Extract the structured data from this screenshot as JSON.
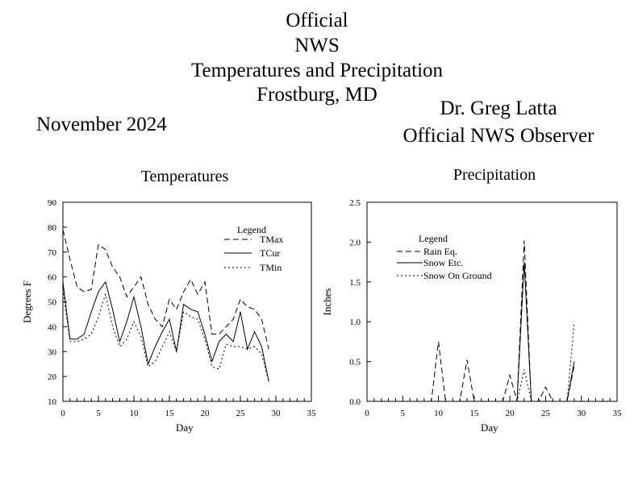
{
  "header": {
    "title_lines": [
      "Official",
      "NWS",
      "Temperatures and Precipitation",
      "Frostburg, MD"
    ],
    "month": "November 2024",
    "observer_name": "Dr. Greg Latta",
    "observer_role": "Official NWS Observer"
  },
  "chart_data": [
    {
      "type": "line",
      "title": "Temperatures",
      "xlabel": "Day",
      "ylabel": "Degrees F",
      "xlim": [
        0,
        35
      ],
      "ylim": [
        10,
        90
      ],
      "xticks": [
        0,
        5,
        10,
        15,
        20,
        25,
        30,
        35
      ],
      "yticks": [
        10,
        20,
        30,
        40,
        50,
        60,
        70,
        80,
        90
      ],
      "grid": false,
      "legend_title": "Legend",
      "legend_position": "top-right",
      "x": [
        0,
        1,
        2,
        3,
        4,
        5,
        6,
        7,
        8,
        9,
        10,
        11,
        12,
        13,
        14,
        15,
        16,
        17,
        18,
        19,
        20,
        21,
        22,
        23,
        24,
        25,
        26,
        27,
        28,
        29
      ],
      "series": [
        {
          "name": "TMax",
          "style": "dashed",
          "values": [
            79,
            67,
            56,
            54,
            55,
            73,
            71,
            64,
            60,
            52,
            56,
            60,
            49,
            43,
            40,
            51,
            47,
            54,
            59,
            53,
            58,
            37,
            37,
            40,
            43,
            51,
            48,
            47,
            43,
            31
          ]
        },
        {
          "name": "TCur",
          "style": "solid",
          "values": [
            58,
            35,
            35,
            37,
            46,
            54,
            58,
            47,
            34,
            42,
            52,
            40,
            25,
            32,
            38,
            43,
            30,
            49,
            47,
            46,
            37,
            26,
            34,
            37,
            34,
            46,
            31,
            38,
            32,
            18
          ]
        },
        {
          "name": "TMin",
          "style": "dotted",
          "values": [
            55,
            34,
            34,
            35,
            37,
            44,
            53,
            40,
            32,
            35,
            42,
            36,
            24,
            26,
            32,
            38,
            30,
            46,
            44,
            43,
            35,
            24,
            23,
            33,
            32,
            32,
            31,
            32,
            29,
            18
          ]
        }
      ]
    },
    {
      "type": "line",
      "title": "Precipitation",
      "xlabel": "Day",
      "ylabel": "Inches",
      "xlim": [
        0,
        35
      ],
      "ylim": [
        0.0,
        2.5
      ],
      "xticks": [
        0,
        5,
        10,
        15,
        20,
        25,
        30,
        35
      ],
      "yticks": [
        "0.0",
        "0.5",
        "1.0",
        "1.5",
        "2.0",
        "2.5"
      ],
      "grid": false,
      "legend_title": "Legend",
      "legend_position": "top-left",
      "x": [
        0,
        1,
        2,
        3,
        4,
        5,
        6,
        7,
        8,
        9,
        10,
        11,
        12,
        13,
        14,
        15,
        16,
        17,
        18,
        19,
        20,
        21,
        22,
        23,
        24,
        25,
        26,
        27,
        28,
        29
      ],
      "series": [
        {
          "name": "Rain Eq.",
          "style": "dashed",
          "values": [
            0,
            0,
            0,
            0,
            0,
            0,
            0,
            0,
            0,
            0,
            0.75,
            0,
            0,
            0,
            0.52,
            0,
            0,
            0,
            0,
            0,
            0.33,
            0,
            2.02,
            0,
            0,
            0.18,
            0,
            0,
            0,
            0.45
          ]
        },
        {
          "name": "Snow Etc.",
          "style": "solid",
          "values": [
            0,
            0,
            0,
            0,
            0,
            0,
            0,
            0,
            0,
            0,
            0,
            0,
            0,
            0,
            0,
            0,
            0,
            0,
            0,
            0,
            0,
            0,
            1.75,
            0,
            0,
            0,
            0,
            0,
            0,
            0.5
          ]
        },
        {
          "name": "Snow On Ground",
          "style": "dotted",
          "values": [
            0,
            0,
            0,
            0,
            0,
            0,
            0,
            0,
            0,
            0,
            0,
            0,
            0,
            0,
            0,
            0,
            0,
            0,
            0,
            0,
            0,
            0,
            0.4,
            0,
            0,
            0,
            0,
            0,
            0,
            1.0
          ]
        }
      ]
    }
  ]
}
